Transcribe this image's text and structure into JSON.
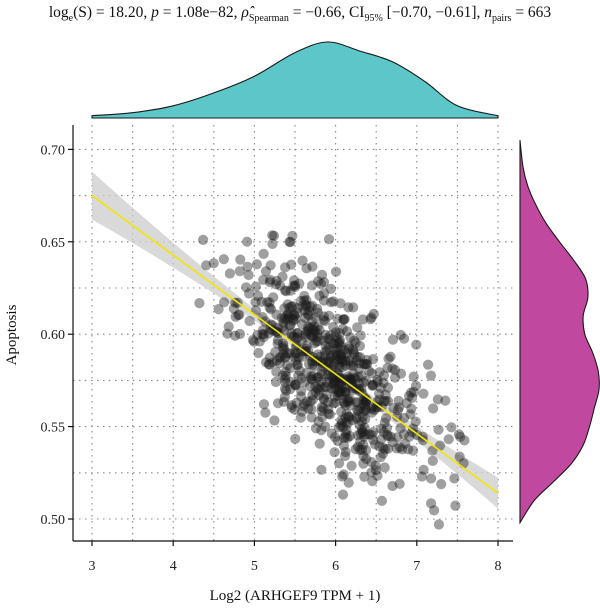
{
  "subtitle": {
    "s_label": "log",
    "s_sub": "e",
    "s_rest": "(S) = 18.20, ",
    "p_label": "p",
    "p_rest": " = 1.08e−82, ",
    "rho_label": "ρ̂",
    "rho_sub": "Spearman",
    "rho_rest": " = −0.66, CI",
    "ci_sub": "95%",
    "ci_rest": " [−0.70, −0.61], ",
    "n_label": "n",
    "n_sub": "pairs",
    "n_rest": " = 663"
  },
  "chart_data": {
    "type": "scatter",
    "title": "",
    "xlabel": "Log2 (ARHGEF9 TPM + 1)",
    "ylabel": "Apoptosis",
    "xlim": [
      2.75,
      8.2
    ],
    "ylim": [
      0.493,
      0.715
    ],
    "xticks": [
      3,
      4,
      5,
      6,
      7,
      8
    ],
    "yticks": [
      0.5,
      0.55,
      0.6,
      0.65,
      0.7
    ],
    "ytick_labels": [
      "0.50",
      "0.55",
      "0.60",
      "0.65",
      "0.70"
    ],
    "grid": "dotted",
    "n_points": 663,
    "regression": {
      "x0": 3.0,
      "y0": 0.675,
      "x1": 8.0,
      "y1": 0.514
    },
    "marginal_density_x": {
      "x": [
        3.0,
        3.5,
        4.0,
        4.5,
        5.0,
        5.5,
        5.9,
        6.3,
        6.7,
        7.1,
        7.5,
        8.0
      ],
      "density": [
        0.03,
        0.07,
        0.16,
        0.33,
        0.55,
        0.86,
        1.0,
        0.88,
        0.74,
        0.48,
        0.16,
        0.03
      ]
    },
    "marginal_density_y": {
      "y": [
        0.498,
        0.51,
        0.52,
        0.53,
        0.54,
        0.55,
        0.56,
        0.57,
        0.58,
        0.59,
        0.6,
        0.61,
        0.62,
        0.63,
        0.64,
        0.65,
        0.66,
        0.67,
        0.68,
        0.69,
        0.705
      ],
      "density": [
        0.0,
        0.18,
        0.42,
        0.65,
        0.8,
        0.88,
        0.94,
        1.0,
        0.99,
        0.92,
        0.82,
        0.8,
        0.86,
        0.83,
        0.68,
        0.5,
        0.33,
        0.2,
        0.1,
        0.04,
        0.0
      ]
    },
    "colors": {
      "points": "#1a1a1a",
      "regression_line": "#f2e600",
      "confidence_band": "#cccccc",
      "x_density_fill": "#5cc6c8",
      "y_density_fill": "#c0489e",
      "grid": "#888888"
    }
  }
}
